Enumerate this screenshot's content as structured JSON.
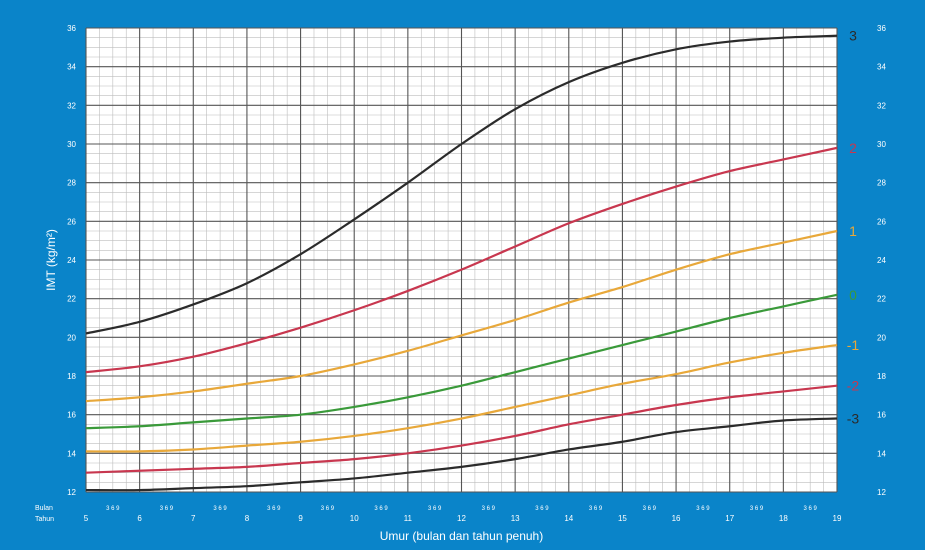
{
  "chart_data": {
    "type": "line",
    "title": "",
    "xlabel": "Umur (bulan dan tahun penuh)",
    "ylabel": "IMT (kg/m²)",
    "x_row_labels": [
      "Bulan",
      "Tahun"
    ],
    "month_tick_label": "3 6 9",
    "xlim": [
      5,
      19
    ],
    "ylim": [
      12,
      36
    ],
    "x_major_ticks": [
      5,
      6,
      7,
      8,
      9,
      10,
      11,
      12,
      13,
      14,
      15,
      16,
      17,
      18,
      19
    ],
    "y_major_ticks": [
      12,
      14,
      16,
      18,
      20,
      22,
      24,
      26,
      28,
      30,
      32,
      34,
      36
    ],
    "grid": true,
    "x": [
      5,
      6,
      7,
      8,
      9,
      10,
      11,
      12,
      13,
      14,
      15,
      16,
      17,
      18,
      19
    ],
    "series": [
      {
        "name": "3",
        "color": "#2b2b2b",
        "values": [
          20.2,
          20.8,
          21.7,
          22.8,
          24.3,
          26.1,
          28.0,
          30.0,
          31.8,
          33.2,
          34.2,
          34.9,
          35.3,
          35.5,
          35.6
        ]
      },
      {
        "name": "2",
        "color": "#c8374f",
        "values": [
          18.2,
          18.5,
          19.0,
          19.7,
          20.5,
          21.4,
          22.4,
          23.5,
          24.7,
          25.9,
          26.9,
          27.8,
          28.6,
          29.2,
          29.8
        ]
      },
      {
        "name": "1",
        "color": "#e8a83a",
        "values": [
          16.7,
          16.9,
          17.2,
          17.6,
          18.0,
          18.6,
          19.3,
          20.1,
          20.9,
          21.8,
          22.6,
          23.5,
          24.3,
          24.9,
          25.5
        ]
      },
      {
        "name": "0",
        "color": "#3a9a3a",
        "values": [
          15.3,
          15.4,
          15.6,
          15.8,
          16.0,
          16.4,
          16.9,
          17.5,
          18.2,
          18.9,
          19.6,
          20.3,
          21.0,
          21.6,
          22.2
        ]
      },
      {
        "name": "-1",
        "color": "#e8a83a",
        "values": [
          14.1,
          14.1,
          14.2,
          14.4,
          14.6,
          14.9,
          15.3,
          15.8,
          16.4,
          17.0,
          17.6,
          18.1,
          18.7,
          19.2,
          19.6
        ]
      },
      {
        "name": "-2",
        "color": "#c8374f",
        "values": [
          13.0,
          13.1,
          13.2,
          13.3,
          13.5,
          13.7,
          14.0,
          14.4,
          14.9,
          15.5,
          16.0,
          16.5,
          16.9,
          17.2,
          17.5
        ]
      },
      {
        "name": "-3",
        "color": "#2b2b2b",
        "values": [
          12.1,
          12.1,
          12.2,
          12.3,
          12.5,
          12.7,
          13.0,
          13.3,
          13.7,
          14.2,
          14.6,
          15.1,
          15.4,
          15.7,
          15.8
        ]
      }
    ]
  }
}
